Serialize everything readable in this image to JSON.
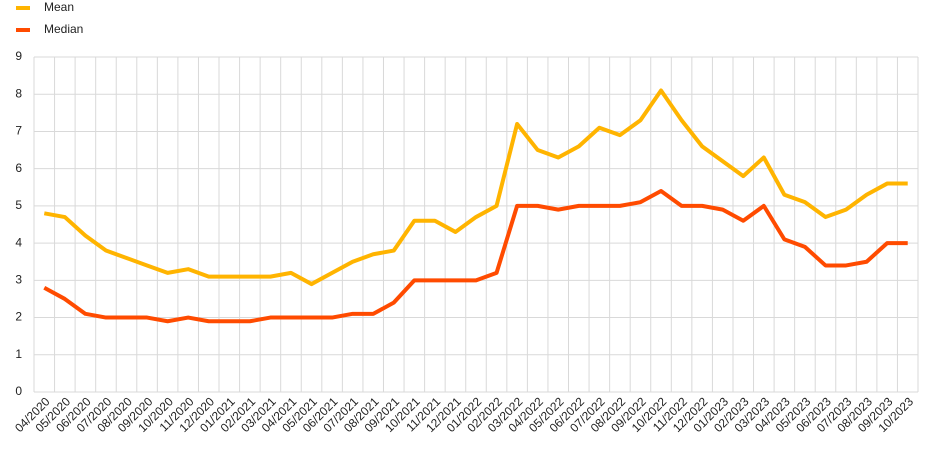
{
  "chart_data": {
    "type": "line",
    "categories": [
      "04/2020",
      "05/2020",
      "06/2020",
      "07/2020",
      "08/2020",
      "09/2020",
      "10/2020",
      "11/2020",
      "12/2020",
      "01/2021",
      "02/2021",
      "03/2021",
      "04/2021",
      "05/2021",
      "06/2021",
      "07/2021",
      "08/2021",
      "09/2021",
      "10/2021",
      "11/2021",
      "12/2021",
      "01/2022",
      "02/2022",
      "03/2022",
      "04/2022",
      "05/2022",
      "06/2022",
      "07/2022",
      "08/2022",
      "09/2022",
      "10/2022",
      "11/2022",
      "12/2022",
      "01/2023",
      "02/2023",
      "03/2023",
      "04/2023",
      "05/2023",
      "06/2023",
      "07/2023",
      "08/2023",
      "09/2023",
      "10/2023"
    ],
    "series": [
      {
        "name": "Mean",
        "color": "#ffb400",
        "values": [
          4.8,
          4.7,
          4.2,
          3.8,
          3.6,
          3.4,
          3.2,
          3.3,
          3.1,
          3.1,
          3.1,
          3.1,
          3.2,
          2.9,
          3.2,
          3.5,
          3.7,
          3.8,
          4.6,
          4.6,
          4.3,
          4.7,
          5.0,
          7.2,
          6.5,
          6.3,
          6.6,
          7.1,
          6.9,
          7.3,
          8.1,
          7.3,
          6.6,
          6.2,
          5.8,
          6.3,
          5.3,
          5.1,
          4.7,
          4.9,
          5.3,
          5.6,
          5.6
        ]
      },
      {
        "name": "Median",
        "color": "#ff4b00",
        "values": [
          2.8,
          2.5,
          2.1,
          2.0,
          2.0,
          2.0,
          1.9,
          2.0,
          1.9,
          1.9,
          1.9,
          2.0,
          2.0,
          2.0,
          2.0,
          2.1,
          2.1,
          2.4,
          3.0,
          3.0,
          3.0,
          3.0,
          3.2,
          5.0,
          5.0,
          4.9,
          5.0,
          5.0,
          5.0,
          5.1,
          5.4,
          5.0,
          5.0,
          4.9,
          4.6,
          5.0,
          4.1,
          3.9,
          3.4,
          3.4,
          3.5,
          4.0,
          4.0
        ]
      }
    ],
    "ylim": [
      0,
      9
    ],
    "yticks": [
      0,
      1,
      2,
      3,
      4,
      5,
      6,
      7,
      8,
      9
    ],
    "grid": true,
    "legend": "top-left"
  }
}
